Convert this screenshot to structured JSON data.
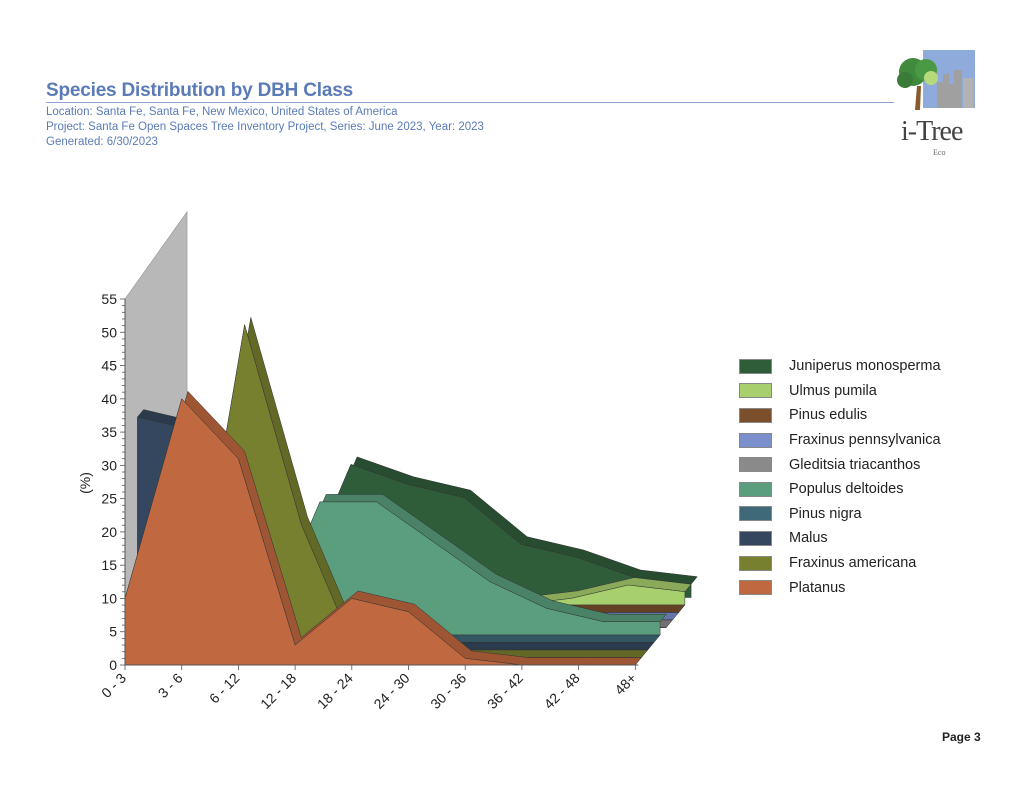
{
  "header": {
    "title": "Species Distribution by DBH Class",
    "location": "Location: Santa Fe, Santa Fe, New Mexico, United States of America",
    "project": "Project: Santa Fe Open Spaces Tree Inventory Project, Series: June 2023, Year: 2023",
    "generated": "Generated: 6/30/2023"
  },
  "logo": {
    "name": "i-Tree",
    "sub": "Eco"
  },
  "footer": {
    "page": "Page 3"
  },
  "chart_data": {
    "type": "area",
    "style": "3d-stacked-depth",
    "title": "Species Distribution by DBH Class",
    "xlabel": "",
    "ylabel": "(%)",
    "ylim": [
      0,
      55
    ],
    "yticks": [
      0,
      5,
      10,
      15,
      20,
      25,
      30,
      35,
      40,
      45,
      50,
      55
    ],
    "grid": false,
    "legend": "right",
    "categories": [
      "0 - 3",
      "3 - 6",
      "6 - 12",
      "12 - 18",
      "18 - 24",
      "24 - 30",
      "30 - 36",
      "36 - 42",
      "42 - 48",
      "48+"
    ],
    "series": [
      {
        "name": "Juniperus monosperma",
        "color": "#2f5d3a",
        "values": [
          0,
          0,
          0,
          20,
          17,
          15,
          8,
          6,
          3,
          2
        ]
      },
      {
        "name": "Ulmus pumila",
        "color": "#a8cf6e",
        "values": [
          0,
          0,
          0,
          0,
          0,
          0,
          0,
          1,
          3,
          2
        ]
      },
      {
        "name": "Pinus edulis",
        "color": "#7b4f2c",
        "values": [
          0,
          0,
          0,
          0,
          0,
          0,
          0,
          0,
          0,
          0
        ]
      },
      {
        "name": "Fraxinus pennsylvanica",
        "color": "#7b8fcc",
        "values": [
          0,
          0,
          0,
          2,
          0,
          0,
          0,
          0,
          0,
          0
        ]
      },
      {
        "name": "Gleditsia triacanthos",
        "color": "#8a8a8a",
        "values": [
          0,
          0,
          0,
          0,
          0,
          0,
          0,
          0,
          0,
          0
        ]
      },
      {
        "name": "Populus deltoides",
        "color": "#5a9e7e",
        "values": [
          0,
          0,
          0,
          20,
          20,
          14,
          8,
          4,
          2,
          2
        ]
      },
      {
        "name": "Pinus nigra",
        "color": "#3f6878",
        "values": [
          0,
          0,
          0,
          2,
          0,
          0,
          0,
          0,
          0,
          0
        ]
      },
      {
        "name": "Malus",
        "color": "#34475e",
        "values": [
          35,
          33,
          0,
          0,
          0,
          0,
          0,
          0,
          0,
          0
        ]
      },
      {
        "name": "Fraxinus americana",
        "color": "#77802e",
        "values": [
          0,
          0,
          50,
          20,
          0,
          0,
          0,
          0,
          0,
          0
        ]
      },
      {
        "name": "Platanus",
        "color": "#c0683f",
        "values": [
          10,
          40,
          31,
          3,
          10,
          8,
          1,
          0,
          0,
          0
        ]
      }
    ],
    "back_wall_series": {
      "name": "Gleditsia triacanthos",
      "color": "#b8b8b8",
      "note": "off-scale wall at 0 - 3"
    }
  }
}
